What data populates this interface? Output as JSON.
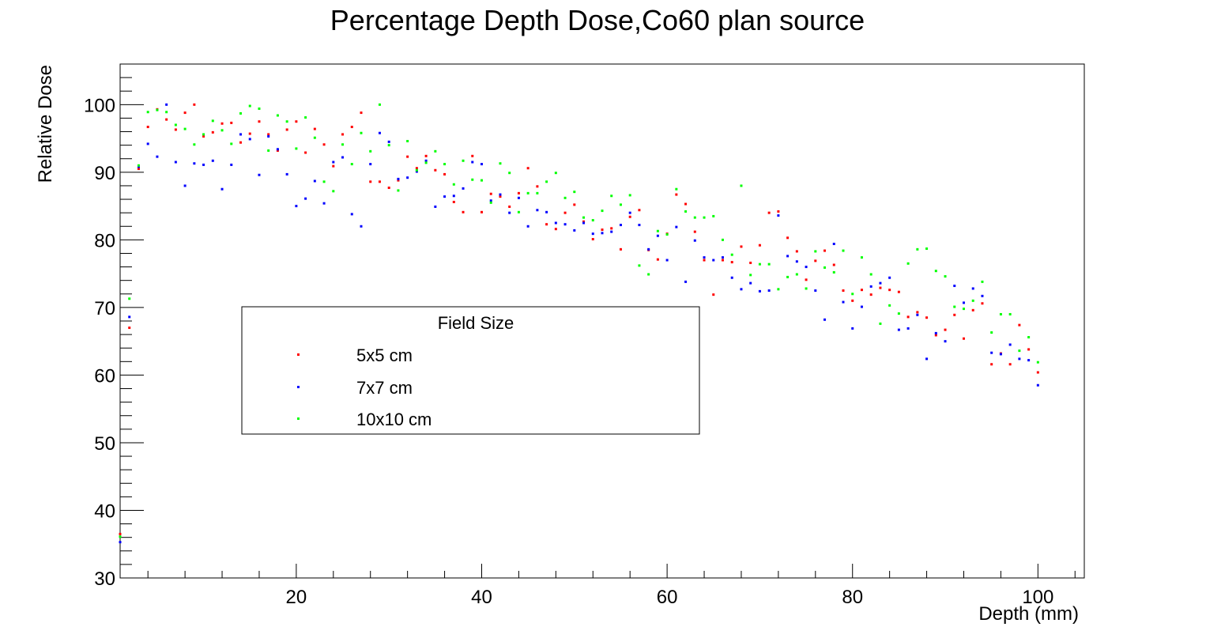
{
  "chart_data": {
    "type": "scatter",
    "title": "Percentage Depth Dose,Co60 plan source",
    "xlabel": "Depth (mm)",
    "ylabel": "Relative Dose",
    "xlim": [
      1,
      105
    ],
    "ylim": [
      30,
      106
    ],
    "x_ticks": [
      20,
      40,
      60,
      80,
      100
    ],
    "x_tick_labels": [
      "20",
      "40",
      "60",
      "80",
      "100"
    ],
    "y_ticks": [
      30,
      40,
      50,
      60,
      70,
      80,
      90,
      100
    ],
    "y_tick_labels": [
      "30",
      "40",
      "50",
      "60",
      "70",
      "80",
      "90",
      "100"
    ],
    "grid": false,
    "legend": {
      "title": "Field Size",
      "placement": "center-left"
    },
    "x": [
      1,
      2,
      3,
      4,
      5,
      6,
      7,
      8,
      9,
      10,
      11,
      12,
      13,
      14,
      15,
      16,
      17,
      18,
      19,
      20,
      21,
      22,
      23,
      24,
      25,
      26,
      27,
      28,
      29,
      30,
      31,
      32,
      33,
      34,
      35,
      36,
      37,
      38,
      39,
      40,
      41,
      42,
      43,
      44,
      45,
      46,
      47,
      48,
      49,
      50,
      51,
      52,
      53,
      54,
      55,
      56,
      57,
      58,
      59,
      60,
      61,
      62,
      63,
      64,
      65,
      66,
      67,
      68,
      69,
      70,
      71,
      72,
      73,
      74,
      75,
      76,
      77,
      78,
      79,
      80,
      81,
      82,
      83,
      84,
      85,
      86,
      87,
      88,
      89,
      90,
      91,
      92,
      93,
      94,
      95,
      96,
      97,
      98,
      99,
      100
    ],
    "series": [
      {
        "name": "5x5 cm",
        "color": "#ff0000",
        "values": [
          36.5,
          67,
          90.5,
          96.7,
          99.3,
          97.8,
          96.3,
          98.8,
          100,
          95.3,
          95.9,
          97.2,
          97.3,
          94.4,
          95.7,
          97.5,
          95.6,
          93.2,
          96.3,
          97.5,
          92.9,
          96.4,
          94.1,
          90.9,
          95.6,
          96.7,
          98.8,
          88.6,
          88.6,
          87.7,
          88.8,
          92.3,
          90.6,
          92.4,
          90.3,
          89.7,
          85.6,
          84.1,
          92.4,
          84.1,
          86.8,
          86.4,
          84.9,
          86.9,
          90.6,
          87.9,
          82.3,
          81.6,
          84,
          85.2,
          82.7,
          80.1,
          81.5,
          81.7,
          78.6,
          83.4,
          84.4,
          78.5,
          77.1,
          80.9,
          86.7,
          85.3,
          81.2,
          77,
          71.9,
          77,
          76.7,
          79,
          76.6,
          79.2,
          84,
          84.2,
          80.3,
          78.3,
          74.1,
          76.9,
          78.4,
          76.3,
          72.5,
          71,
          72.6,
          71.9,
          72.9,
          72.6,
          72.3,
          68.6,
          69.3,
          68.5,
          65.9,
          66.7,
          68.9,
          65.4,
          69.6,
          70.6,
          61.6,
          63.2,
          61.6,
          67.4,
          63.8,
          60.4
        ]
      },
      {
        "name": "7x7 cm",
        "color": "#0000ff",
        "values": [
          35.3,
          68.6,
          90.8,
          94.2,
          92.3,
          100,
          91.5,
          88,
          91.3,
          91.1,
          91.7,
          87.5,
          91.1,
          95.6,
          94.9,
          89.6,
          95.3,
          93.4,
          89.7,
          85,
          86.1,
          88.7,
          85.4,
          91.5,
          92.2,
          83.8,
          82,
          91.2,
          95.8,
          94.5,
          89,
          89.2,
          90.1,
          91.7,
          84.9,
          86.4,
          86.5,
          87.6,
          91.5,
          91.2,
          85.8,
          86.7,
          84,
          86.2,
          82,
          84.4,
          84.1,
          82.5,
          82.3,
          81.4,
          82.5,
          80.9,
          81,
          81.2,
          82.2,
          84,
          82.2,
          78.6,
          80.6,
          77,
          81.9,
          73.8,
          79.9,
          77.4,
          77,
          77.4,
          74.4,
          72.7,
          73.6,
          72.4,
          72.5,
          83.6,
          77.6,
          76.8,
          76,
          72.5,
          68.2,
          79.4,
          70.8,
          66.9,
          70.1,
          73.1,
          73.6,
          74.4,
          66.7,
          66.9,
          68.9,
          62.4,
          66.2,
          65,
          73.2,
          70.7,
          72.8,
          71.7,
          63.3,
          63.1,
          64.5,
          62.4,
          62.2,
          58.5
        ]
      },
      {
        "name": "10x10 cm",
        "color": "#00ff00",
        "values": [
          36.1,
          71.3,
          91,
          98.9,
          99.2,
          98.9,
          97,
          96.4,
          94.1,
          95.6,
          97.6,
          96.2,
          94.2,
          98.7,
          99.8,
          99.4,
          93.2,
          98.4,
          97.5,
          93.5,
          98.1,
          95.1,
          88.6,
          87.2,
          94.1,
          91.2,
          95.8,
          93.1,
          100,
          94,
          87.3,
          94.6,
          90.3,
          91.4,
          93.1,
          91.2,
          88.2,
          91.7,
          88.9,
          88.8,
          85.5,
          91.3,
          89.9,
          84.1,
          86.9,
          86.9,
          88.6,
          89.9,
          86.2,
          87.1,
          83.3,
          82.9,
          84.3,
          86.5,
          85.2,
          86.6,
          76.2,
          74.9,
          81.3,
          80.8,
          87.5,
          84.2,
          83.3,
          83.3,
          83.5,
          80,
          77.8,
          88,
          74.8,
          76.4,
          76.4,
          72.7,
          74.5,
          74.9,
          72.8,
          78.3,
          75.9,
          75.2,
          78.4,
          72,
          77.4,
          74.9,
          67.6,
          70.3,
          69.1,
          76.5,
          78.6,
          78.7,
          75.4,
          74.6,
          70.1,
          69.8,
          71,
          73.8,
          66.3,
          69,
          69,
          63.6,
          65.6,
          61.9
        ]
      }
    ]
  }
}
